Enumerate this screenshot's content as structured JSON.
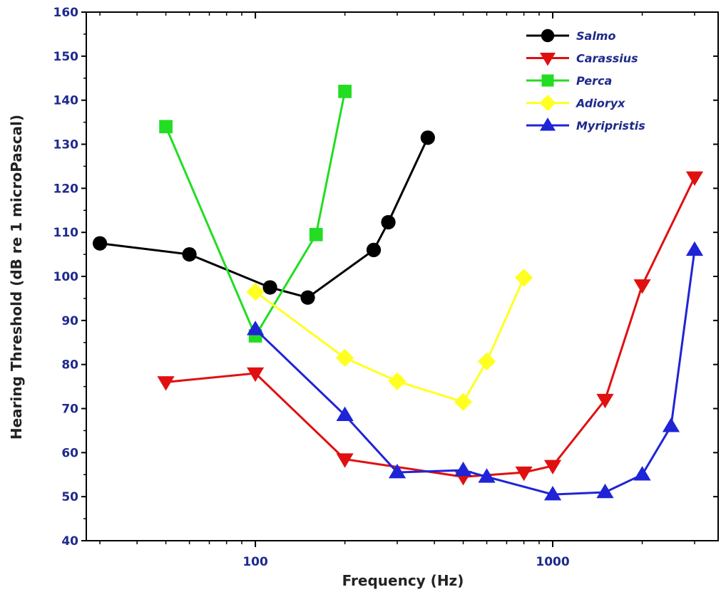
{
  "chart_data": {
    "type": "line",
    "x_scale": "log",
    "xlim": [
      27,
      3600
    ],
    "ylim": [
      40,
      160
    ],
    "xlabel": "Frequency (Hz)",
    "ylabel": "Hearing Threshold (dB re 1 microPascal)",
    "x_ticks": [
      100,
      1000
    ],
    "x_tick_labels": [
      "100",
      "1000"
    ],
    "y_ticks": [
      40,
      50,
      60,
      70,
      80,
      90,
      100,
      110,
      120,
      130,
      140,
      150,
      160
    ],
    "y_tick_labels": [
      "40",
      "50",
      "60",
      "70",
      "80",
      "90",
      "100",
      "110",
      "120",
      "130",
      "140",
      "150",
      "160"
    ],
    "grid": false,
    "legend_position": "top-right",
    "series": [
      {
        "name": "Salmo",
        "color": "#000000",
        "marker": "circle",
        "x": [
          30,
          60,
          112,
          150,
          250,
          280,
          380
        ],
        "y": [
          107.5,
          105,
          97.5,
          95.2,
          106,
          112.3,
          131.5
        ]
      },
      {
        "name": "Carassius",
        "color": "#e01010",
        "marker": "triangle-down",
        "x": [
          50,
          100,
          200,
          500,
          800,
          1000,
          1500,
          2000,
          3000
        ],
        "y": [
          76,
          78,
          58.5,
          54.5,
          55.5,
          57,
          72,
          98,
          122.5
        ]
      },
      {
        "name": "Perca",
        "color": "#22dd22",
        "marker": "square",
        "x": [
          50,
          100,
          160,
          200
        ],
        "y": [
          134,
          86.5,
          109.5,
          142
        ]
      },
      {
        "name": "Adioryx",
        "color": "#ffff22",
        "marker": "diamond",
        "x": [
          100,
          200,
          300,
          500,
          600,
          800
        ],
        "y": [
          96.5,
          81.5,
          76.2,
          71.5,
          80.7,
          99.7
        ]
      },
      {
        "name": "Myripristis",
        "color": "#1f24d6",
        "marker": "triangle-up",
        "x": [
          100,
          200,
          300,
          500,
          600,
          1000,
          1500,
          2000,
          2500,
          3000
        ],
        "y": [
          88,
          68.5,
          55.5,
          56,
          54.5,
          50.5,
          51,
          55,
          66,
          106
        ]
      }
    ]
  },
  "colors": {
    "tick_label": "#1e2a8c",
    "axis": "#000000",
    "axis_title": "#222222"
  }
}
